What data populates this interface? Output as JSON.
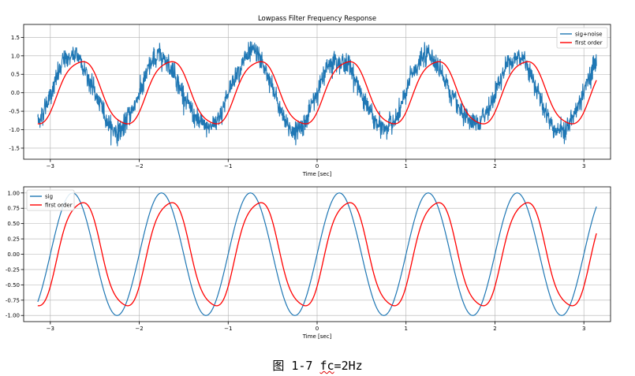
{
  "caption": {
    "prefix": "图 1-7 ",
    "fc": "fc",
    "rest": "=2Hz"
  },
  "chart_data": [
    {
      "type": "line",
      "title": "Lowpass Filter Frequency Response",
      "xlabel": "Time [sec]",
      "ylabel": "",
      "xlim": [
        -3.3,
        3.3
      ],
      "ylim": [
        -1.8,
        1.85
      ],
      "xticks": [
        -3,
        -2,
        -1,
        0,
        1,
        2,
        3
      ],
      "yticks": [
        -1.5,
        -1.0,
        -0.5,
        0.0,
        0.5,
        1.0,
        1.5
      ],
      "ytick_labels": [
        "-1.5",
        "-1.0",
        "-0.5",
        "0.0",
        "0.5",
        "1.0",
        "1.5"
      ],
      "grid": true,
      "legend": "top-right",
      "signal": {
        "frequency_hz": 1,
        "t_start": -3.1416,
        "t_end": 3.1416,
        "noise_amplitude": 0.5,
        "cutoff_hz": 2
      },
      "series": [
        {
          "name": "sig+noise",
          "color": "#1f77b4"
        },
        {
          "name": "first order",
          "color": "#ff0000"
        }
      ]
    },
    {
      "type": "line",
      "title": "",
      "xlabel": "Time [sec]",
      "ylabel": "",
      "xlim": [
        -3.3,
        3.3
      ],
      "ylim": [
        -1.1,
        1.1
      ],
      "xticks": [
        -3,
        -2,
        -1,
        0,
        1,
        2,
        3
      ],
      "yticks": [
        -1.0,
        -0.75,
        -0.5,
        -0.25,
        0.0,
        0.25,
        0.5,
        0.75,
        1.0
      ],
      "ytick_labels": [
        "-1.00",
        "-0.75",
        "-0.50",
        "-0.25",
        "0.00",
        "0.25",
        "0.50",
        "0.75",
        "1.00"
      ],
      "grid": true,
      "legend": "top-left",
      "signal": {
        "frequency_hz": 1,
        "t_start": -3.1416,
        "t_end": 3.1416,
        "cutoff_hz": 2
      },
      "series": [
        {
          "name": "sig",
          "color": "#1f77b4"
        },
        {
          "name": "first order",
          "color": "#ff0000"
        }
      ]
    }
  ]
}
